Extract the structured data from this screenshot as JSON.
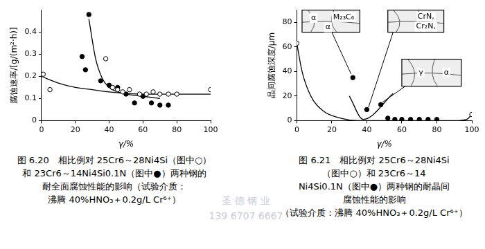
{
  "chart_data": [
    {
      "type": "scatter",
      "x_label": "γ/%",
      "y_label": "腐蚀速率/[g/(m²·h)]",
      "xlim": [
        0,
        100
      ],
      "xticks": [
        0,
        20,
        40,
        60,
        80,
        100
      ],
      "ylim": [
        0,
        0.5
      ],
      "yticks": [
        0,
        0.1,
        0.2,
        0.3,
        0.4
      ],
      "grid": false,
      "series": [
        {
          "type": "scatter",
          "marker": "circle-open",
          "color": "#000000",
          "x": [
            1,
            5,
            38,
            42,
            45,
            48,
            52,
            58,
            62,
            66,
            70,
            75,
            80,
            100
          ],
          "values": [
            0.21,
            0.14,
            0.28,
            0.15,
            0.14,
            0.13,
            0.14,
            0.12,
            0.12,
            0.13,
            0.12,
            0.12,
            0.12,
            0.14
          ]
        },
        {
          "type": "scatter",
          "marker": "circle-filled",
          "color": "#000000",
          "x": [
            24,
            26,
            28,
            35,
            40,
            45,
            50,
            55,
            60,
            65,
            70,
            75
          ],
          "values": [
            0.29,
            0.23,
            0.48,
            0.18,
            0.16,
            0.15,
            0.12,
            0.08,
            0.11,
            0.08,
            0.07,
            0.07
          ]
        },
        {
          "type": "line",
          "line_style": "solid",
          "color": "#000000",
          "x": [
            0,
            10,
            20,
            30,
            40,
            60,
            80,
            100
          ],
          "values": [
            0.2,
            0.17,
            0.15,
            0.14,
            0.13,
            0.12,
            0.12,
            0.12
          ]
        },
        {
          "type": "line",
          "line_style": "solid",
          "color": "#000000",
          "x": [
            28,
            32,
            36,
            40,
            45,
            50,
            60,
            70
          ],
          "values": [
            0.46,
            0.28,
            0.19,
            0.15,
            0.13,
            0.12,
            0.11,
            0.1
          ]
        }
      ],
      "caption": [
        "图 6.20　相比例对 25Cr6～28Ni4Si（图中○）",
        "和 23Cr6～14Ni4Si0.1N（图中●）两种钢的",
        "耐全面腐蚀性能的影响（试验介质：",
        "沸腾 40%HNO₃＋0.2g/L Cr⁶⁺）"
      ]
    },
    {
      "type": "scatter",
      "x_label": "γ/%",
      "y_label": "晶间腐蚀深度/μm",
      "xlim": [
        0,
        100
      ],
      "xticks": [
        0,
        20,
        40,
        60,
        80,
        100
      ],
      "ylim": [
        0,
        90
      ],
      "yticks": [
        0,
        20,
        40,
        60,
        80
      ],
      "grid": false,
      "series": [
        {
          "type": "scatter",
          "marker": "circle-open",
          "color": "#000000",
          "x": [
            0,
            100
          ],
          "values": [
            63,
            5
          ]
        },
        {
          "type": "scatter",
          "marker": "circle-filled",
          "color": "#000000",
          "x": [
            32,
            40,
            48,
            52,
            56,
            60,
            65,
            70,
            75,
            80
          ],
          "values": [
            35,
            9,
            13,
            2,
            1,
            1,
            1,
            1,
            1,
            1
          ]
        },
        {
          "type": "line",
          "line_style": "solid",
          "color": "#000000",
          "x": [
            0,
            3,
            8,
            15,
            25,
            35,
            50,
            70,
            90,
            97,
            100
          ],
          "values": [
            63,
            40,
            20,
            8,
            2,
            0,
            0,
            0,
            0,
            1,
            5
          ]
        },
        {
          "type": "line",
          "line_style": "solid",
          "color": "#000000",
          "x": [
            30,
            38,
            55
          ],
          "values": [
            20,
            1,
            22
          ]
        }
      ],
      "annotations": [
        {
          "texts": [
            "α",
            "M₂₃C₆",
            "α"
          ]
        },
        {
          "texts": [
            "CrN,",
            "Cr₂N,"
          ]
        },
        {
          "texts": [
            "γ",
            "α"
          ]
        }
      ],
      "caption": [
        "图 6.21　相比例对 25Cr6～28Ni4Si",
        "（图中○）和 23Cr6～14",
        "Ni4Si0.1N（图中●）两种钢的耐晶间",
        "腐蚀性能的影响",
        "（试验介质：沸腾 40%HNO₃＋0.2g/L Cr⁶⁺）"
      ]
    }
  ],
  "watermark": [
    "圣 德 钢 业",
    "139 6707 6667"
  ]
}
